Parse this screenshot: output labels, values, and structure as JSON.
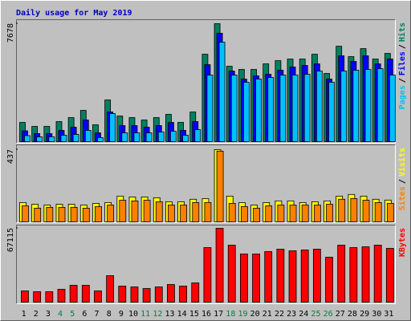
{
  "chart_data": [
    {
      "type": "bar",
      "title": "Daily usage for May 2019",
      "legend_separator": "/",
      "ylim": [
        0,
        7678
      ],
      "yticks": [
        7678
      ],
      "series": [
        {
          "name": "Hits",
          "color": "#008060",
          "values": [
            1253,
            992,
            992,
            1305,
            1566,
            2036,
            1096,
            2714,
            1670,
            1566,
            1409,
            1566,
            1775,
            1253,
            1931,
            5690,
            7678,
            4906,
            4698,
            4698,
            5063,
            5272,
            5376,
            5376,
            5690,
            4437,
            6211,
            5533,
            6055,
            5376,
            5742
          ]
        },
        {
          "name": "Files",
          "color": "#0000ff",
          "values": [
            702,
            522,
            522,
            731,
            940,
            1410,
            574,
            1931,
            1044,
            1044,
            940,
            1044,
            1253,
            731,
            1305,
            5011,
            7052,
            4594,
            4072,
            4280,
            4385,
            4646,
            4855,
            4959,
            5063,
            4072,
            5585,
            5220,
            5585,
            5063,
            5377
          ]
        },
        {
          "name": "Pages",
          "color": "#00c0ff",
          "values": [
            392,
            313,
            313,
            418,
            470,
            731,
            261,
            1827,
            574,
            574,
            574,
            626,
            679,
            418,
            783,
            4333,
            6472,
            4333,
            3863,
            4072,
            4176,
            4333,
            4333,
            4385,
            4594,
            3863,
            4594,
            4646,
            4698,
            4750,
            4333
          ]
        }
      ]
    },
    {
      "type": "bar",
      "ylim": [
        0,
        437
      ],
      "yticks": [
        437
      ],
      "series": [
        {
          "name": "Visits",
          "color": "#ffff00",
          "values": [
            117,
            107,
            102,
            107,
            107,
            102,
            112,
            117,
            156,
            151,
            151,
            146,
            122,
            122,
            137,
            141,
            437,
            156,
            117,
            102,
            117,
            127,
            127,
            117,
            122,
            127,
            156,
            166,
            156,
            137,
            132
          ]
        },
        {
          "name": "Sites",
          "color": "#ff8000",
          "values": [
            97,
            83,
            88,
            88,
            88,
            83,
            93,
            102,
            131,
            127,
            131,
            122,
            102,
            102,
            117,
            117,
            428,
            112,
            93,
            83,
            97,
            102,
            102,
            102,
            102,
            107,
            137,
            141,
            131,
            117,
            112
          ]
        }
      ]
    },
    {
      "type": "bar",
      "ylim": [
        0,
        67115
      ],
      "yticks": [
        67115
      ],
      "categories": [
        "1",
        "2",
        "3",
        "4",
        "5",
        "6",
        "7",
        "8",
        "9",
        "10",
        "11",
        "12",
        "13",
        "14",
        "15",
        "16",
        "17",
        "18",
        "19",
        "20",
        "21",
        "22",
        "23",
        "24",
        "25",
        "26",
        "27",
        "28",
        "29",
        "30",
        "31"
      ],
      "category_colors": [
        "#000000",
        "#000000",
        "#000000",
        "#008040",
        "#008040",
        "#000000",
        "#000000",
        "#000000",
        "#000000",
        "#000000",
        "#008040",
        "#008040",
        "#000000",
        "#000000",
        "#000000",
        "#000000",
        "#000000",
        "#008040",
        "#008040",
        "#000000",
        "#000000",
        "#000000",
        "#000000",
        "#000000",
        "#008040",
        "#008040",
        "#000000",
        "#000000",
        "#000000",
        "#000000",
        "#000000"
      ],
      "series": [
        {
          "name": "KBytes",
          "color": "#ff0000",
          "values": [
            10213,
            9484,
            9484,
            11672,
            15320,
            15320,
            10213,
            24074,
            14590,
            13861,
            12402,
            13861,
            16049,
            14590,
            17508,
            49607,
            67115,
            51796,
            43771,
            43771,
            45960,
            48148,
            46689,
            47418,
            48148,
            40853,
            51796,
            49607,
            50337,
            51796,
            48878
          ]
        }
      ]
    }
  ]
}
